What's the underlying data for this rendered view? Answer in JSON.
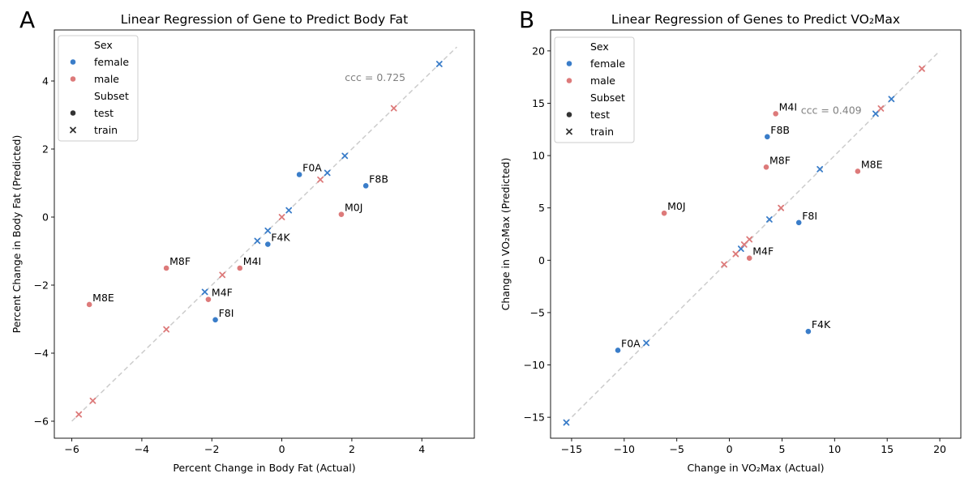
{
  "chart_data": [
    {
      "type": "scatter",
      "panel": "A",
      "title": "Linear Regression of Gene to Predict Body Fat",
      "xlabel": "Percent Change in Body Fat (Actual)",
      "ylabel": "Percent Change in Body Fat (Predicted)",
      "xlim": [
        -6.5,
        5.5
      ],
      "ylim": [
        -6.5,
        5.5
      ],
      "xticks": [
        -6,
        -4,
        -2,
        0,
        2,
        4
      ],
      "yticks": [
        -6,
        -4,
        -2,
        0,
        2,
        4
      ],
      "identity_line": [
        -6,
        5
      ],
      "annotation": {
        "text": "ccc = 0.725",
        "x": 1.8,
        "y": 4.0
      },
      "points": [
        {
          "x": 0.5,
          "y": 1.25,
          "sex": "female",
          "subset": "test",
          "label": "F0A"
        },
        {
          "x": 2.4,
          "y": 0.92,
          "sex": "female",
          "subset": "test",
          "label": "F8B"
        },
        {
          "x": -0.4,
          "y": -0.8,
          "sex": "female",
          "subset": "test",
          "label": "F4K"
        },
        {
          "x": -1.9,
          "y": -3.02,
          "sex": "female",
          "subset": "test",
          "label": "F8I"
        },
        {
          "x": 1.7,
          "y": 0.08,
          "sex": "male",
          "subset": "test",
          "label": "M0J"
        },
        {
          "x": -1.2,
          "y": -1.5,
          "sex": "male",
          "subset": "test",
          "label": "M4I"
        },
        {
          "x": -3.3,
          "y": -1.5,
          "sex": "male",
          "subset": "test",
          "label": "M8F"
        },
        {
          "x": -2.1,
          "y": -2.42,
          "sex": "male",
          "subset": "test",
          "label": "M4F"
        },
        {
          "x": -5.5,
          "y": -2.57,
          "sex": "male",
          "subset": "test",
          "label": "M8E"
        },
        {
          "x": 4.5,
          "y": 4.5,
          "sex": "female",
          "subset": "train"
        },
        {
          "x": 1.8,
          "y": 1.8,
          "sex": "female",
          "subset": "train"
        },
        {
          "x": 1.3,
          "y": 1.3,
          "sex": "female",
          "subset": "train"
        },
        {
          "x": 0.2,
          "y": 0.2,
          "sex": "female",
          "subset": "train"
        },
        {
          "x": -0.4,
          "y": -0.4,
          "sex": "female",
          "subset": "train"
        },
        {
          "x": -0.7,
          "y": -0.7,
          "sex": "female",
          "subset": "train"
        },
        {
          "x": -2.2,
          "y": -2.2,
          "sex": "female",
          "subset": "train"
        },
        {
          "x": 3.2,
          "y": 3.2,
          "sex": "male",
          "subset": "train"
        },
        {
          "x": 1.1,
          "y": 1.1,
          "sex": "male",
          "subset": "train"
        },
        {
          "x": 0.0,
          "y": 0.0,
          "sex": "male",
          "subset": "train"
        },
        {
          "x": -1.7,
          "y": -1.7,
          "sex": "male",
          "subset": "train"
        },
        {
          "x": -3.3,
          "y": -3.3,
          "sex": "male",
          "subset": "train"
        },
        {
          "x": -5.4,
          "y": -5.4,
          "sex": "male",
          "subset": "train"
        },
        {
          "x": -5.8,
          "y": -5.8,
          "sex": "male",
          "subset": "train"
        }
      ]
    },
    {
      "type": "scatter",
      "panel": "B",
      "title": "Linear Regression of Genes to Predict VO₂Max",
      "xlabel": "Change in VO₂Max (Actual)",
      "ylabel": "Change in VO₂Max (Predicted)",
      "xlim": [
        -17,
        22
      ],
      "ylim": [
        -17,
        22
      ],
      "xticks": [
        -15,
        -10,
        -5,
        0,
        5,
        10,
        15,
        20
      ],
      "yticks": [
        -15,
        -10,
        -5,
        0,
        5,
        10,
        15,
        20
      ],
      "identity_line": [
        -15.5,
        20
      ],
      "annotation": {
        "text": "ccc = 0.409",
        "x": 6.8,
        "y": 14.0
      },
      "points": [
        {
          "x": 3.6,
          "y": 11.8,
          "sex": "female",
          "subset": "test",
          "label": "F8B"
        },
        {
          "x": 6.6,
          "y": 3.6,
          "sex": "female",
          "subset": "test",
          "label": "F8I"
        },
        {
          "x": 7.5,
          "y": -6.8,
          "sex": "female",
          "subset": "test",
          "label": "F4K"
        },
        {
          "x": -10.6,
          "y": -8.6,
          "sex": "female",
          "subset": "test",
          "label": "F0A"
        },
        {
          "x": 4.4,
          "y": 14.0,
          "sex": "male",
          "subset": "test",
          "label": "M4I"
        },
        {
          "x": 3.5,
          "y": 8.9,
          "sex": "male",
          "subset": "test",
          "label": "M8F"
        },
        {
          "x": 12.2,
          "y": 8.5,
          "sex": "male",
          "subset": "test",
          "label": "M8E"
        },
        {
          "x": -6.2,
          "y": 4.5,
          "sex": "male",
          "subset": "test",
          "label": "M0J"
        },
        {
          "x": 1.9,
          "y": 0.2,
          "sex": "male",
          "subset": "test",
          "label": "M4F"
        },
        {
          "x": 15.4,
          "y": 15.4,
          "sex": "female",
          "subset": "train"
        },
        {
          "x": 13.9,
          "y": 14.0,
          "sex": "female",
          "subset": "train"
        },
        {
          "x": 8.6,
          "y": 8.7,
          "sex": "female",
          "subset": "train"
        },
        {
          "x": 3.8,
          "y": 3.9,
          "sex": "female",
          "subset": "train"
        },
        {
          "x": 1.1,
          "y": 1.1,
          "sex": "female",
          "subset": "train"
        },
        {
          "x": -7.9,
          "y": -7.9,
          "sex": "female",
          "subset": "train"
        },
        {
          "x": -15.5,
          "y": -15.5,
          "sex": "female",
          "subset": "train"
        },
        {
          "x": 18.3,
          "y": 18.3,
          "sex": "male",
          "subset": "train"
        },
        {
          "x": 14.4,
          "y": 14.5,
          "sex": "male",
          "subset": "train"
        },
        {
          "x": 4.9,
          "y": 5.0,
          "sex": "male",
          "subset": "train"
        },
        {
          "x": 1.9,
          "y": 2.0,
          "sex": "male",
          "subset": "train"
        },
        {
          "x": 1.4,
          "y": 1.5,
          "sex": "male",
          "subset": "train"
        },
        {
          "x": 0.6,
          "y": 0.6,
          "sex": "male",
          "subset": "train"
        },
        {
          "x": -0.5,
          "y": -0.4,
          "sex": "male",
          "subset": "train"
        }
      ]
    }
  ],
  "legend": {
    "sex_title": "Sex",
    "sex_items": [
      {
        "label": "female",
        "color": "#3a7dc9"
      },
      {
        "label": "male",
        "color": "#dd7a7a"
      }
    ],
    "subset_title": "Subset",
    "subset_items": [
      {
        "label": "test",
        "marker": "circle"
      },
      {
        "label": "train",
        "marker": "x"
      }
    ],
    "placement": "top-left"
  },
  "colors": {
    "female": "#3a7dc9",
    "male": "#dd7a7a",
    "identity_line": "#cccccc",
    "annotation": "#808080"
  }
}
